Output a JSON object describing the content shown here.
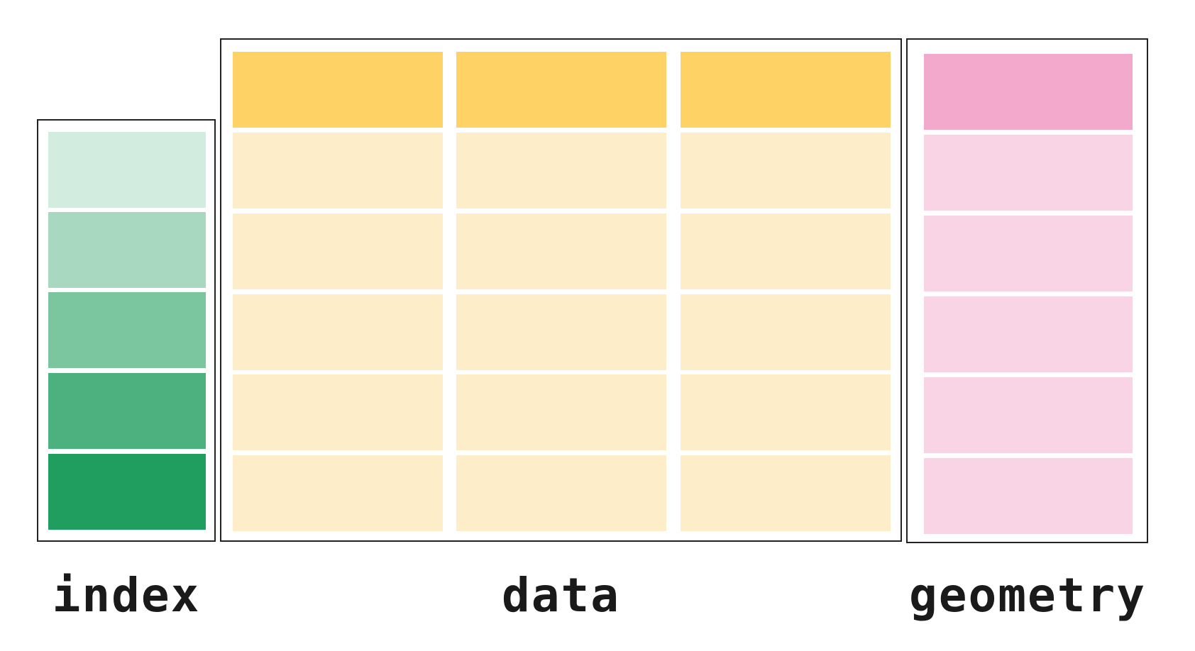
{
  "labels": {
    "index": "index",
    "data": "data",
    "geometry": "geometry"
  },
  "colors": {
    "index_rows": [
      "#d3ece0",
      "#a8d8c0",
      "#7bc59f",
      "#4db07f",
      "#209e5f"
    ],
    "data_header": "#fed264",
    "data_cell": "#fdeec9",
    "geometry_header": "#f3a9cc",
    "geometry_cell": "#f8d4e5",
    "frame_border": "#222222"
  },
  "structure": {
    "index_rows": 5,
    "data_columns": 3,
    "data_header_rows": 1,
    "data_body_rows": 5,
    "geometry_header_rows": 1,
    "geometry_body_rows": 5
  }
}
